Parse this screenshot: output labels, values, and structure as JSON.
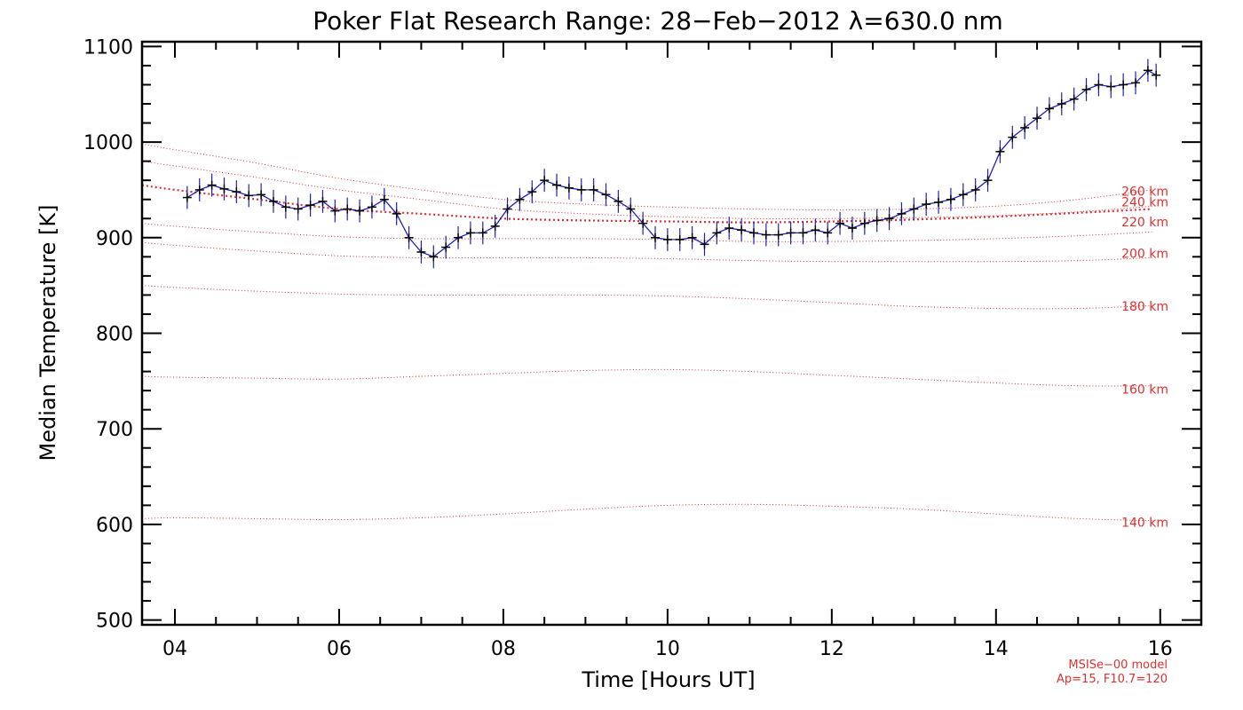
{
  "chart_data": {
    "type": "line",
    "title": "Poker Flat Research Range: 28−Feb−2012 λ=630.0 nm",
    "xlabel": "Time [Hours UT]",
    "ylabel": "Median Temperature [K]",
    "xlim": [
      3.6,
      16.5
    ],
    "ylim": [
      495,
      1105
    ],
    "x_ticks": [
      4,
      6,
      8,
      10,
      12,
      14,
      16
    ],
    "x_tick_labels": [
      "04",
      "06",
      "08",
      "10",
      "12",
      "14",
      "16"
    ],
    "y_ticks": [
      500,
      600,
      700,
      800,
      900,
      1000,
      1100
    ],
    "y_tick_labels": [
      "500",
      "600",
      "700",
      "800",
      "900",
      "1000",
      "1100"
    ],
    "grid": false,
    "colors": {
      "observed": "#000000",
      "error_bar": "#2020c0",
      "model": "#e03030"
    },
    "series": [
      {
        "x": [
          4.15,
          4.3,
          4.45,
          4.6,
          4.75,
          4.9,
          5.05,
          5.2,
          5.35,
          5.5,
          5.65,
          5.8,
          5.95,
          6.1,
          6.25,
          6.4,
          6.55,
          6.7,
          6.85,
          7.0,
          7.15,
          7.3,
          7.45,
          7.6,
          7.75,
          7.9,
          8.05,
          8.2,
          8.35,
          8.5,
          8.65,
          8.8,
          8.95,
          9.1,
          9.25,
          9.4,
          9.55,
          9.7,
          9.85,
          10.0,
          10.15,
          10.3,
          10.45,
          10.6,
          10.75,
          10.9,
          11.05,
          11.2,
          11.35,
          11.5,
          11.65,
          11.8,
          11.95,
          12.1,
          12.25,
          12.4,
          12.55,
          12.7,
          12.85,
          13.0,
          13.15,
          13.3,
          13.45,
          13.6,
          13.75,
          13.9,
          14.05,
          14.2,
          14.35,
          14.5,
          14.65,
          14.8,
          14.95,
          15.1,
          15.25,
          15.4,
          15.55,
          15.7,
          15.85,
          15.95
        ],
        "values": [
          942,
          950,
          955,
          951,
          948,
          944,
          945,
          938,
          932,
          930,
          934,
          938,
          928,
          930,
          928,
          932,
          940,
          925,
          900,
          885,
          880,
          890,
          900,
          905,
          905,
          912,
          930,
          940,
          948,
          960,
          955,
          952,
          950,
          950,
          945,
          938,
          930,
          915,
          900,
          898,
          898,
          900,
          893,
          905,
          910,
          908,
          905,
          903,
          903,
          905,
          905,
          908,
          905,
          915,
          910,
          915,
          918,
          920,
          925,
          930,
          935,
          937,
          940,
          945,
          950,
          960,
          990,
          1005,
          1015,
          1025,
          1035,
          1040,
          1045,
          1055,
          1060,
          1058,
          1060,
          1062,
          1075,
          1070
        ],
        "error": 12
      },
      {
        "x": [
          3.6,
          4,
          5,
          6,
          7,
          8,
          9,
          10,
          11,
          12,
          13,
          14,
          15,
          15.9
        ],
        "values": [
          606,
          607,
          606,
          605,
          607,
          611,
          616,
          620,
          621,
          619,
          616,
          611,
          606,
          604
        ]
      },
      {
        "x": [
          3.6,
          4,
          5,
          6,
          7,
          8,
          9,
          10,
          11,
          12,
          13,
          14,
          15,
          15.9
        ],
        "values": [
          755,
          754,
          753,
          752,
          755,
          758,
          761,
          762,
          760,
          756,
          752,
          748,
          745,
          745
        ]
      },
      {
        "x": [
          3.6,
          4,
          5,
          6,
          7,
          8,
          9,
          10,
          11,
          12,
          13,
          14,
          15,
          15.9
        ],
        "values": [
          850,
          848,
          844,
          841,
          840,
          840,
          840,
          839,
          836,
          832,
          828,
          826,
          826,
          829
        ]
      },
      {
        "x": [
          3.6,
          4,
          5,
          6,
          7,
          8,
          9,
          10,
          11,
          12,
          13,
          14,
          15,
          15.9
        ],
        "values": [
          895,
          892,
          886,
          881,
          879,
          879,
          879,
          878,
          876,
          875,
          875,
          875,
          876,
          879
        ]
      },
      {
        "x": [
          3.6,
          4,
          5,
          6,
          7,
          8,
          9,
          10,
          11,
          12,
          13,
          14,
          15,
          15.9
        ],
        "values": [
          915,
          912,
          906,
          901,
          899,
          899,
          899,
          898,
          896,
          896,
          897,
          899,
          902,
          906
        ]
      },
      {
        "x": [
          3.6,
          4,
          5,
          6,
          7,
          8,
          9,
          10,
          11,
          12,
          13,
          14,
          15,
          15.9
        ],
        "values": [
          955,
          950,
          940,
          930,
          925,
          920,
          918,
          917,
          916,
          917,
          919,
          922,
          926,
          930
        ]
      },
      {
        "x": [
          3.6,
          4,
          5,
          6,
          7,
          8,
          9,
          10,
          11,
          12,
          13,
          14,
          15,
          15.9
        ],
        "values": [
          980,
          975,
          963,
          950,
          940,
          930,
          925,
          922,
          920,
          920,
          921,
          923,
          927,
          933
        ]
      },
      {
        "x": [
          3.6,
          4,
          5,
          6,
          7,
          8,
          9,
          10,
          11,
          12,
          13,
          14,
          15,
          15.9
        ],
        "values": [
          998,
          992,
          978,
          962,
          950,
          940,
          935,
          932,
          930,
          929,
          930,
          933,
          940,
          950
        ]
      }
    ],
    "model_labels": [
      {
        "text": "140 km",
        "y": 594
      },
      {
        "text": "160 km",
        "y": 733
      },
      {
        "text": "180 km",
        "y": 820
      },
      {
        "text": "200 km",
        "y": 875
      },
      {
        "text": "220 km",
        "y": 908
      },
      {
        "text": "240 km",
        "y": 929
      },
      {
        "text": "260 km",
        "y": 940
      }
    ],
    "notes": [
      "MSISe−00 model",
      "Ap=15, F10.7=120"
    ]
  }
}
